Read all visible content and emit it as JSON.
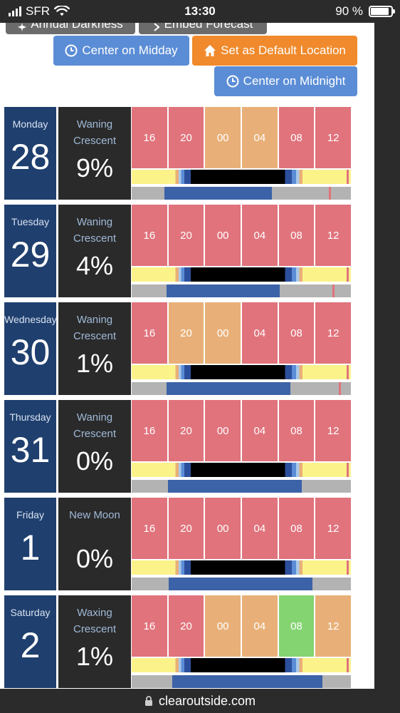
{
  "status_bar": {
    "carrier": "SFR",
    "time": "13:30",
    "battery": "90 %",
    "battery_level": 0.9
  },
  "toolbar": {
    "annual_darkness": "Annual Darkness",
    "embed_forecast": "Embed Forecast",
    "center_midday": "Center on Midday",
    "default_location": "Set as Default Location",
    "center_midnight": "Center on Midnight"
  },
  "days": [
    {
      "day_name": "Monday",
      "day_num": "28",
      "phase": "Waning Crescent",
      "illumination": "9%",
      "hours": [
        {
          "label": "16",
          "color": "red"
        },
        {
          "label": "20",
          "color": "red"
        },
        {
          "label": "00",
          "color": "orange"
        },
        {
          "label": "04",
          "color": "orange"
        },
        {
          "label": "08",
          "color": "red"
        },
        {
          "label": "12",
          "color": "red"
        }
      ],
      "moon_up": [
        0.15,
        0.64
      ],
      "moon_tick": 0.9,
      "sun_tick": 0.98
    },
    {
      "day_name": "Tuesday",
      "day_num": "29",
      "phase": "Waning Crescent",
      "illumination": "4%",
      "hours": [
        {
          "label": "16",
          "color": "red"
        },
        {
          "label": "20",
          "color": "red"
        },
        {
          "label": "00",
          "color": "red"
        },
        {
          "label": "04",
          "color": "red"
        },
        {
          "label": "08",
          "color": "red"
        },
        {
          "label": "12",
          "color": "red"
        }
      ],
      "moon_up": [
        0.16,
        0.675
      ],
      "moon_tick": 0.915,
      "sun_tick": 0.98
    },
    {
      "day_name": "Wednesday",
      "day_num": "30",
      "phase": "Waning Crescent",
      "illumination": "1%",
      "hours": [
        {
          "label": "16",
          "color": "red"
        },
        {
          "label": "20",
          "color": "orange"
        },
        {
          "label": "00",
          "color": "orange"
        },
        {
          "label": "04",
          "color": "red"
        },
        {
          "label": "08",
          "color": "red"
        },
        {
          "label": "12",
          "color": "red"
        }
      ],
      "moon_up": [
        0.16,
        0.725
      ],
      "moon_tick": 0.945,
      "sun_tick": 0.98
    },
    {
      "day_name": "Thursday",
      "day_num": "31",
      "phase": "Waning Crescent",
      "illumination": "0%",
      "hours": [
        {
          "label": "16",
          "color": "red"
        },
        {
          "label": "20",
          "color": "red"
        },
        {
          "label": "00",
          "color": "red"
        },
        {
          "label": "04",
          "color": "red"
        },
        {
          "label": "08",
          "color": "red"
        },
        {
          "label": "12",
          "color": "red"
        }
      ],
      "moon_up": [
        0.165,
        0.775
      ],
      "moon_tick": null,
      "sun_tick": 0.98
    },
    {
      "day_name": "Friday",
      "day_num": "1",
      "phase": "New Moon",
      "illumination": "0%",
      "hours": [
        {
          "label": "16",
          "color": "red"
        },
        {
          "label": "20",
          "color": "red"
        },
        {
          "label": "00",
          "color": "red"
        },
        {
          "label": "04",
          "color": "red"
        },
        {
          "label": "08",
          "color": "red"
        },
        {
          "label": "12",
          "color": "red"
        }
      ],
      "moon_up": [
        0.17,
        0.825
      ],
      "moon_tick": null,
      "sun_tick": 0.98
    },
    {
      "day_name": "Saturday",
      "day_num": "2",
      "phase": "Waxing Crescent",
      "illumination": "1%",
      "hours": [
        {
          "label": "16",
          "color": "red"
        },
        {
          "label": "20",
          "color": "red"
        },
        {
          "label": "00",
          "color": "orange"
        },
        {
          "label": "04",
          "color": "orange"
        },
        {
          "label": "08",
          "color": "green"
        },
        {
          "label": "12",
          "color": "orange"
        }
      ],
      "moon_up": [
        0.185,
        0.87
      ],
      "moon_tick": null,
      "sun_tick": 0.98
    }
  ],
  "url": "clearoutside.com",
  "colors": {
    "red": "#e0737c",
    "orange": "#e8b078",
    "green": "#84d472",
    "day_blue": "#1f3f6e",
    "moon_dark": "#2a2a2a"
  }
}
